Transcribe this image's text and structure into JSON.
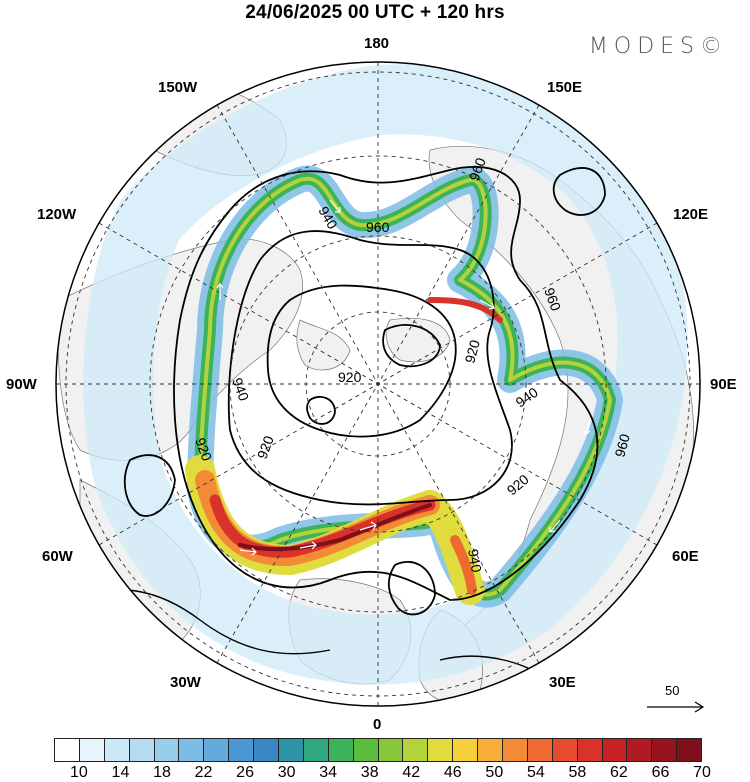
{
  "header": {
    "title": "24/06/2025  00 UTC  + 120 hrs",
    "logo": "MODES©"
  },
  "map": {
    "projection": "north-polar-stereographic",
    "longitude_labels": {
      "top": "180",
      "top_left": "150W",
      "top_right": "150E",
      "upper_left": "120W",
      "upper_right": "120E",
      "left": "90W",
      "right": "90E",
      "lower_left": "60W",
      "lower_right": "60E",
      "bottom_left": "30W",
      "bottom_right": "30E",
      "bottom": "0"
    },
    "contour_labels": [
      "960",
      "960",
      "940",
      "960",
      "920",
      "920",
      "940",
      "920",
      "940",
      "920",
      "920",
      "940",
      "960",
      "960",
      "960"
    ],
    "reference_vector": {
      "label": "50"
    }
  },
  "colorbar": {
    "labels": [
      "10",
      "14",
      "18",
      "22",
      "26",
      "30",
      "34",
      "38",
      "42",
      "46",
      "50",
      "54",
      "58",
      "62",
      "66",
      "70"
    ],
    "colors": [
      "#ffffff",
      "#e6f4fb",
      "#cde9f7",
      "#b3dcf2",
      "#98cdec",
      "#7dbde5",
      "#62abdc",
      "#4a97d1",
      "#3a86c3",
      "#2f93a6",
      "#2fa780",
      "#3cb35a",
      "#5cbd3d",
      "#86c83a",
      "#b4d33a",
      "#e0dc3d",
      "#f6cf3c",
      "#f6ad3a",
      "#f38a36",
      "#ee6a31",
      "#e54b2c",
      "#d9322a",
      "#c62226",
      "#b01a22",
      "#97141e",
      "#7d0e1a"
    ]
  }
}
